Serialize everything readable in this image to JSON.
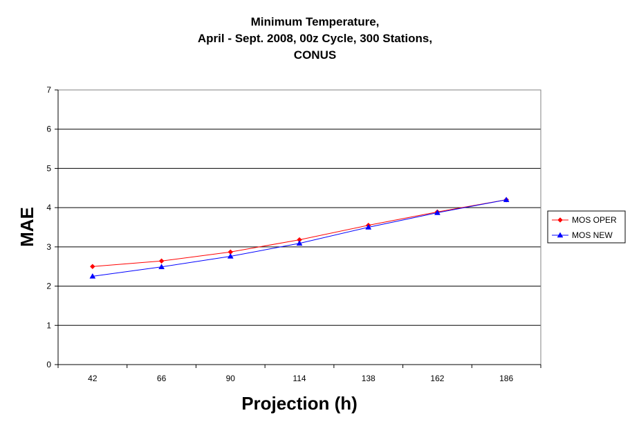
{
  "chart_data": {
    "type": "line",
    "title_lines": [
      "Minimum Temperature,",
      "April - Sept. 2008, 00z Cycle, 300 Stations,",
      "CONUS"
    ],
    "xlabel": "Projection (h)",
    "ylabel": "MAE",
    "categories": [
      "42",
      "66",
      "90",
      "114",
      "138",
      "162",
      "186"
    ],
    "ylim": [
      0,
      7
    ],
    "yticks": [
      "0",
      "1",
      "2",
      "3",
      "4",
      "5",
      "6",
      "7"
    ],
    "grid": true,
    "legend_position": "right",
    "series": [
      {
        "name": "MOS OPER",
        "color": "#ff0000",
        "marker": "diamond",
        "values": [
          2.5,
          2.64,
          2.87,
          3.18,
          3.55,
          3.89,
          4.2
        ]
      },
      {
        "name": "MOS NEW",
        "color": "#0000ff",
        "marker": "triangle",
        "values": [
          2.25,
          2.49,
          2.76,
          3.09,
          3.5,
          3.87,
          4.2
        ]
      }
    ]
  }
}
